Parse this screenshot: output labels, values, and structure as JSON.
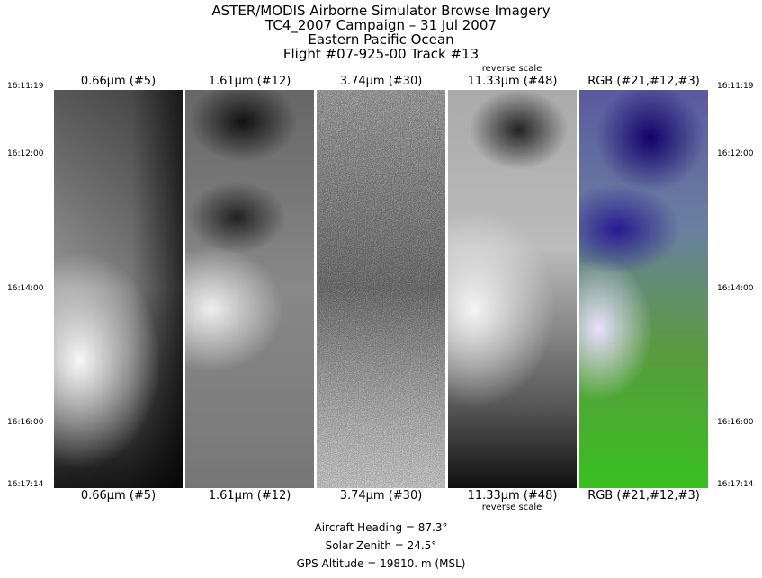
{
  "header": {
    "lines": [
      "ASTER/MODIS Airborne Simulator Browse Imagery",
      "TC4_2007 Campaign – 31 Jul 2007",
      "Eastern Pacific Ocean",
      "Flight #07-925-00 Track #13"
    ]
  },
  "panels": [
    {
      "label": "0.66μm (#5)"
    },
    {
      "label": "1.61μm (#12)"
    },
    {
      "label": "3.74μm (#30)"
    },
    {
      "label": "11.33μm (#48)",
      "note": "reverse scale"
    },
    {
      "label": "RGB (#21,#12,#3)"
    }
  ],
  "times": [
    "16:11:19",
    "16:12:00",
    "16:14:00",
    "16:16:00",
    "16:17:14"
  ],
  "footer": {
    "lines": [
      "Aircraft Heading =   87.3°",
      "Solar Zenith =   24.5°",
      "GPS Altitude =  19810. m (MSL)"
    ]
  }
}
